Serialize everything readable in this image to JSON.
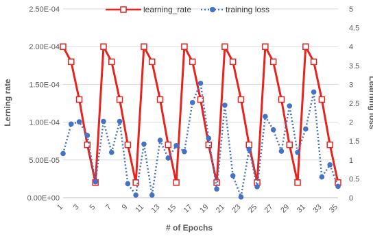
{
  "chart_data": {
    "type": "line",
    "xlabel": "# of Epochs",
    "ylabel_left": "Lerning rate",
    "ylabel_right": "Learning loss",
    "x_ticks": [
      "1",
      "3",
      "5",
      "7",
      "9",
      "11",
      "13",
      "15",
      "17",
      "19",
      "21",
      "23",
      "25",
      "27",
      "29",
      "31",
      "33",
      "35"
    ],
    "y_left_ticks": [
      "0.00E+00",
      "5.00E-05",
      "1.00E-04",
      "1.50E-04",
      "2.00E-04",
      "2.50E-04"
    ],
    "y_right_ticks": [
      "0",
      "0.5",
      "1",
      "1.5",
      "2",
      "2.5",
      "3",
      "3.5",
      "4",
      "4.5",
      "5"
    ],
    "ylim_left": [
      0,
      0.00025
    ],
    "ylim_right": [
      0,
      5
    ],
    "xlim": [
      1,
      35
    ],
    "legend_position": "top",
    "series": [
      {
        "name": "learning_rate",
        "axis": "left",
        "color": "#e8231e",
        "style": "solid",
        "marker": "square",
        "x": [
          1,
          2,
          3,
          4,
          5,
          6,
          7,
          8,
          9,
          10,
          11,
          12,
          13,
          14,
          15,
          16,
          17,
          18,
          19,
          20,
          21,
          22,
          23,
          24,
          25,
          26,
          27,
          28,
          29,
          30,
          31,
          32,
          33,
          34,
          35
        ],
        "values": [
          0.0002,
          0.00018,
          0.00013,
          7e-05,
          2e-05,
          0.0002,
          0.00018,
          0.00013,
          7e-05,
          2e-05,
          0.0002,
          0.00018,
          0.00013,
          7e-05,
          2e-05,
          0.0002,
          0.00018,
          0.00013,
          7e-05,
          2e-05,
          0.0002,
          0.00018,
          0.00013,
          7e-05,
          2e-05,
          0.0002,
          0.00018,
          0.00013,
          7e-05,
          2e-05,
          0.0002,
          0.00018,
          0.00013,
          7e-05,
          2e-05
        ]
      },
      {
        "name": "training loss",
        "axis": "right",
        "color": "#4472c4",
        "style": "dotted",
        "marker": "circle",
        "x": [
          1,
          2,
          3,
          4,
          5,
          6,
          7,
          8,
          9,
          10,
          11,
          12,
          13,
          14,
          15,
          16,
          17,
          18,
          19,
          20,
          21,
          22,
          23,
          24,
          25,
          26,
          27,
          28,
          29,
          30,
          31,
          32,
          33,
          34,
          35
        ],
        "values": [
          1.17,
          1.95,
          2.01,
          1.65,
          0.42,
          2.02,
          1.2,
          2.02,
          0.37,
          0.07,
          1.42,
          0.07,
          1.52,
          1.05,
          1.38,
          1.22,
          2.52,
          3.03,
          1.57,
          0.23,
          2.45,
          0.58,
          0.02,
          1.28,
          0.29,
          2.15,
          1.8,
          1.23,
          2.43,
          1.2,
          1.82,
          2.8,
          0.55,
          0.87,
          0.3
        ]
      }
    ]
  }
}
